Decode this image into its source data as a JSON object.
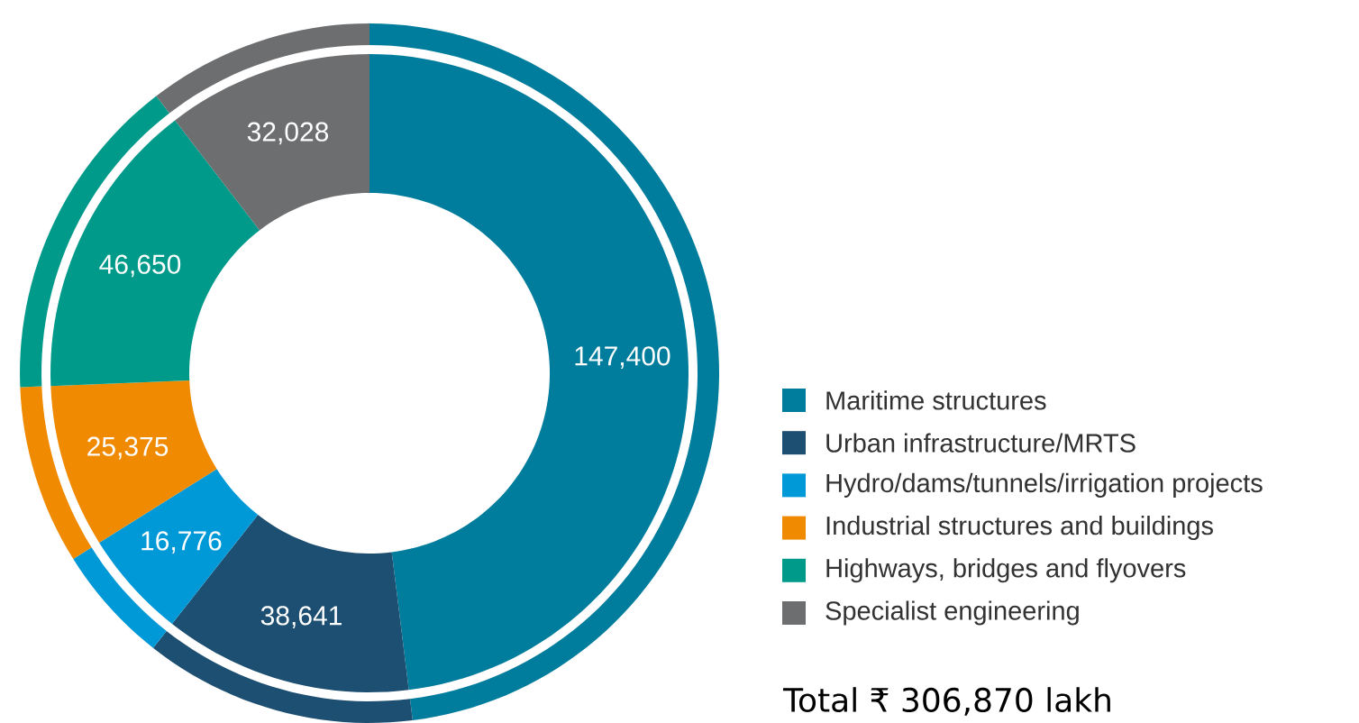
{
  "chart_data": {
    "type": "donut",
    "categories": [
      "Maritime structures",
      "Urban infrastructure/MRTS",
      "Hydro/dams/tunnels/irrigation projects",
      "Industrial structures and buildings",
      "Highways, bridges and flyovers",
      "Specialist engineering"
    ],
    "series": [
      {
        "values": [
          147400,
          38641,
          16776,
          25375,
          46650,
          32028
        ],
        "value_labels": [
          "147,400",
          "38,641",
          "16,776",
          "25,375",
          "46,650",
          "32,028"
        ]
      },
      {
        "values": [
          48.03,
          12.59,
          5.47,
          8.27,
          15.2,
          10.44
        ]
      }
    ],
    "colors": [
      "#007d9c",
      "#1d4f72",
      "#0099d8",
      "#f08a00",
      "#009a8a",
      "#6d6e70"
    ],
    "legend": "right",
    "annotations": [
      "Total ₹ 306,870 lakh"
    ]
  }
}
